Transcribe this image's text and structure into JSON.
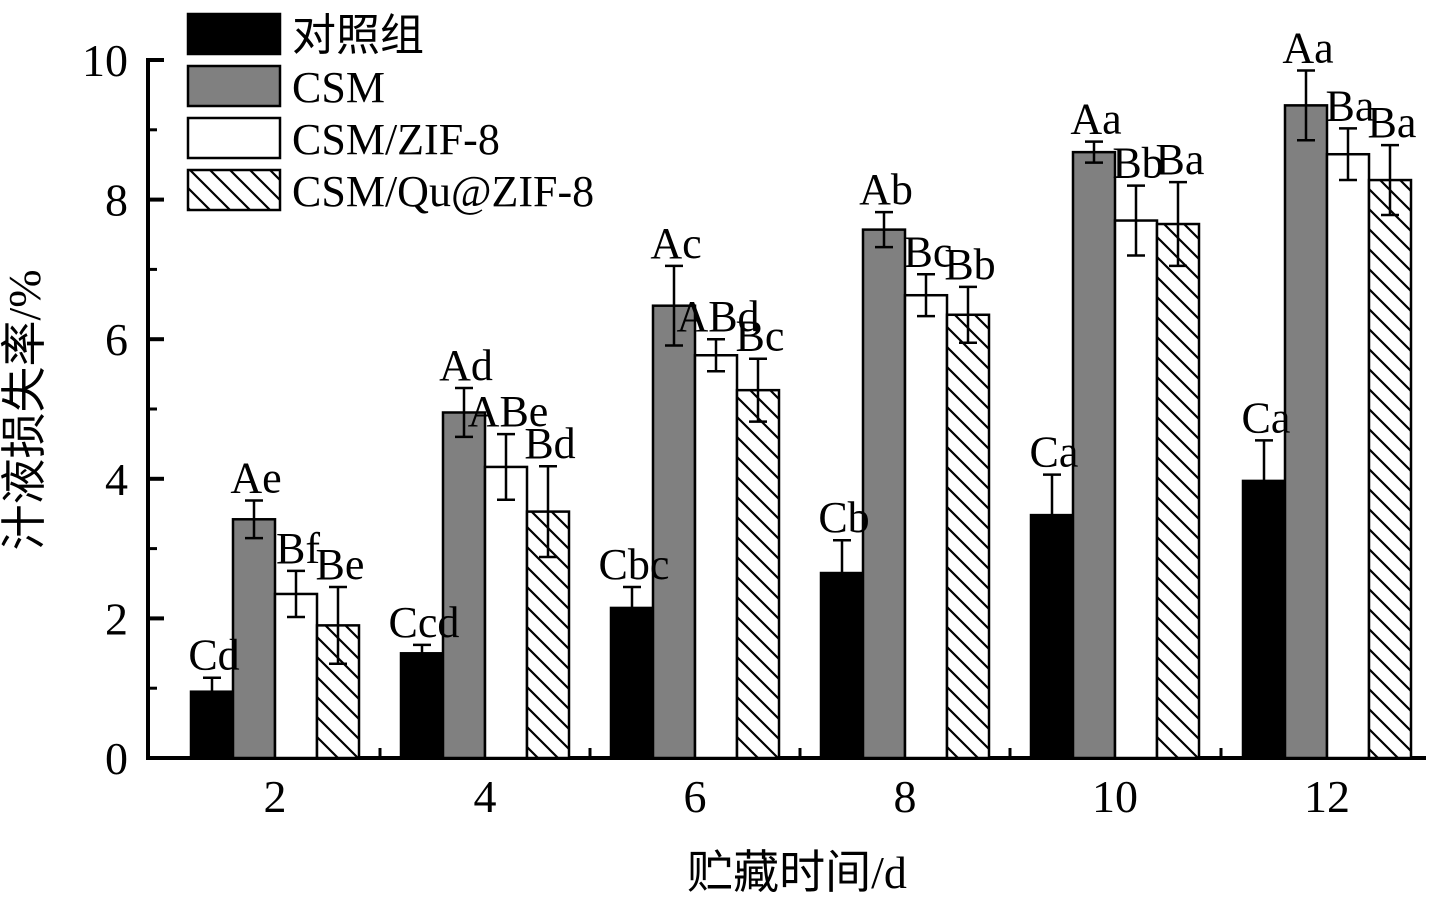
{
  "chart_data": {
    "type": "bar",
    "xlabel": "贮藏时间/d",
    "ylabel": "汁液损失率/%",
    "ylim": [
      0,
      10
    ],
    "yticks": [
      0,
      2,
      4,
      6,
      8,
      10
    ],
    "categories": [
      "2",
      "4",
      "6",
      "8",
      "10",
      "12"
    ],
    "legend_position": "top-left",
    "grid": false,
    "series": [
      {
        "name": "对照组",
        "fill": "solid-black",
        "color": "#000000",
        "values": [
          0.95,
          1.5,
          2.15,
          2.65,
          3.48,
          3.97
        ],
        "errors": [
          0.2,
          0.12,
          0.3,
          0.47,
          0.58,
          0.58
        ],
        "labels": [
          "Cd",
          "Ccd",
          "Cbc",
          "Cb",
          "Ca",
          "Ca"
        ]
      },
      {
        "name": "CSM",
        "fill": "solid-gray",
        "color": "#808080",
        "values": [
          3.42,
          4.95,
          6.48,
          7.57,
          8.68,
          9.35
        ],
        "errors": [
          0.27,
          0.35,
          0.57,
          0.25,
          0.15,
          0.5
        ],
        "labels": [
          "Ae",
          "Ad",
          "Ac",
          "Ab",
          "Aa",
          "Aa"
        ]
      },
      {
        "name": "CSM/ZIF-8",
        "fill": "white",
        "color": "#ffffff",
        "values": [
          2.35,
          4.17,
          5.77,
          6.63,
          7.7,
          8.65
        ],
        "errors": [
          0.33,
          0.47,
          0.23,
          0.3,
          0.5,
          0.37
        ],
        "labels": [
          "Bf",
          "ABe",
          "ABd",
          "Bc",
          "Bb",
          "Ba"
        ]
      },
      {
        "name": "CSM/Qu@ZIF-8",
        "fill": "hatched",
        "color": "#000000",
        "values": [
          1.9,
          3.53,
          5.27,
          6.35,
          7.65,
          8.28
        ],
        "errors": [
          0.55,
          0.65,
          0.45,
          0.4,
          0.6,
          0.5
        ],
        "labels": [
          "Be",
          "Bd",
          "Bc",
          "Bb",
          "Ba",
          "Ba"
        ]
      }
    ]
  }
}
